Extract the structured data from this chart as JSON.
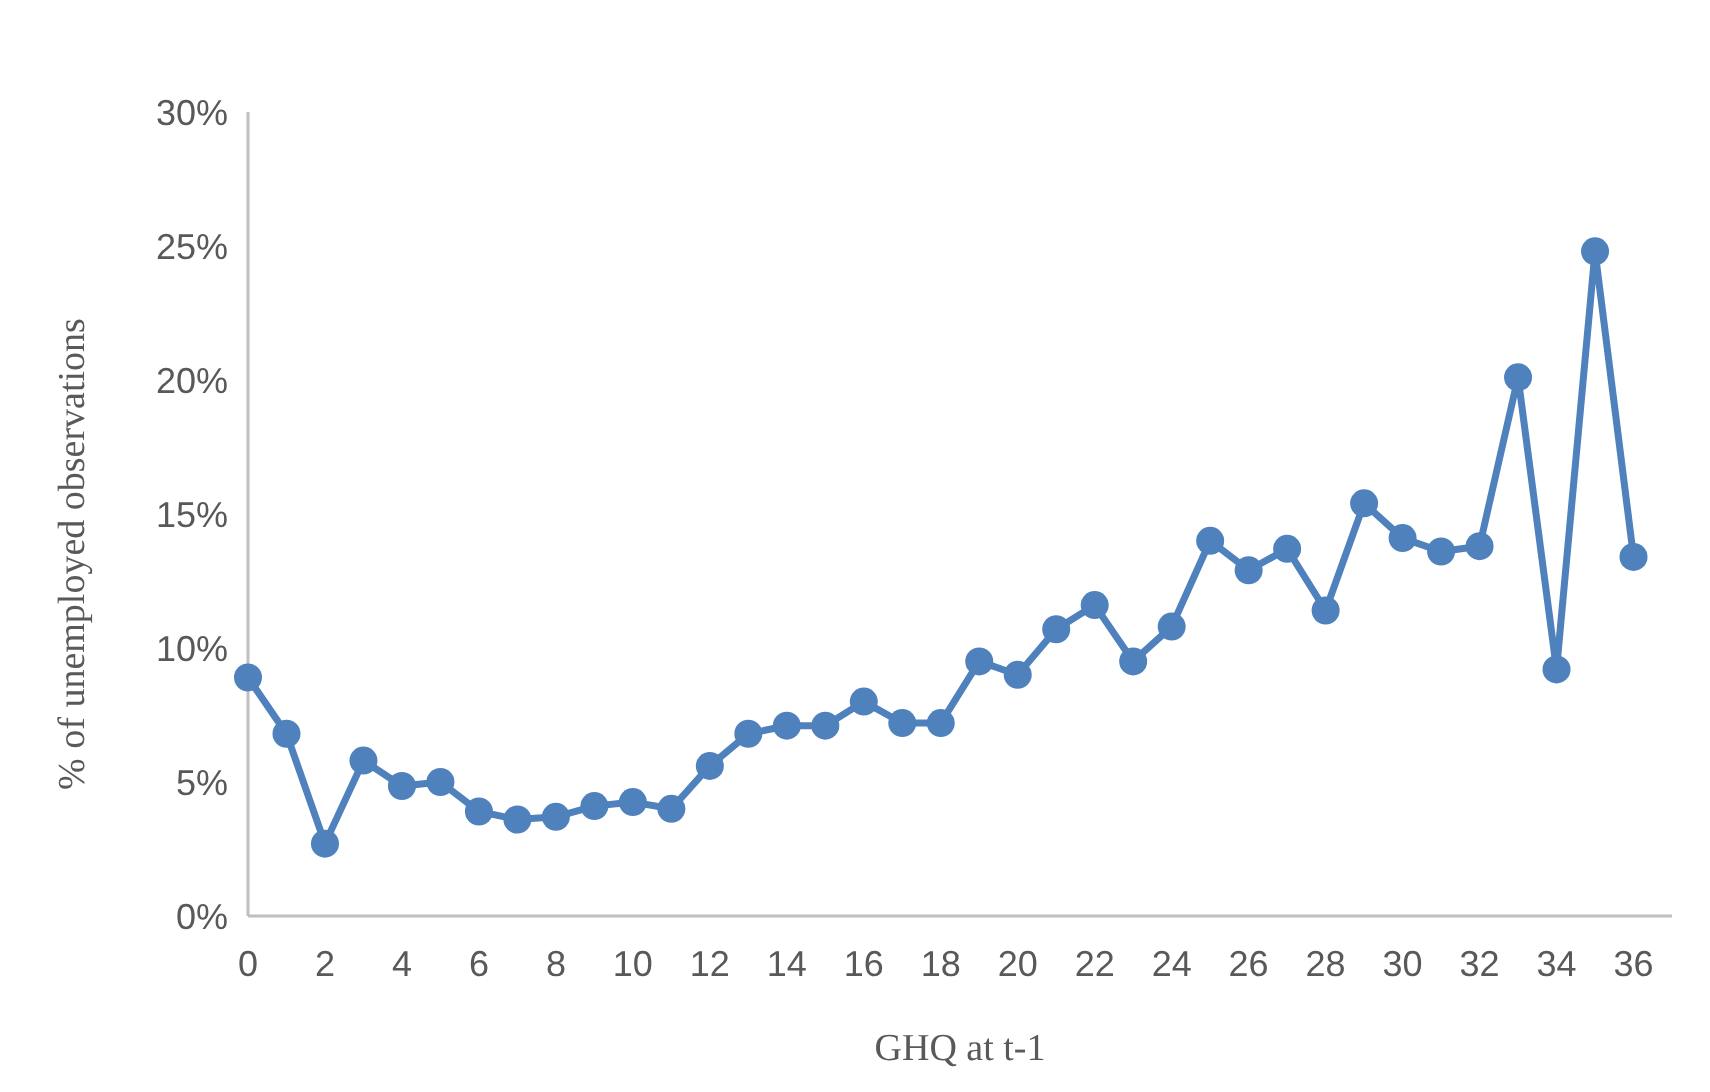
{
  "chart_data": {
    "type": "line",
    "xlabel": "GHQ at t-1",
    "ylabel": "% of unemployed observations",
    "x": [
      0,
      1,
      2,
      3,
      4,
      5,
      6,
      7,
      8,
      9,
      10,
      11,
      12,
      13,
      14,
      15,
      16,
      17,
      18,
      19,
      20,
      21,
      22,
      23,
      24,
      25,
      26,
      27,
      28,
      29,
      30,
      31,
      32,
      33,
      34,
      35,
      36
    ],
    "series": [
      {
        "color": "#4f81bd",
        "values": [
          8.9,
          6.8,
          2.7,
          5.8,
          4.85,
          5.0,
          3.9,
          3.6,
          3.7,
          4.1,
          4.25,
          4.0,
          5.6,
          6.8,
          7.1,
          7.1,
          8.0,
          7.2,
          7.2,
          9.5,
          9.0,
          10.7,
          11.6,
          9.5,
          10.8,
          14.0,
          12.9,
          13.7,
          11.4,
          15.4,
          14.1,
          13.6,
          13.8,
          20.1,
          9.2,
          24.8,
          13.4
        ]
      }
    ],
    "xlim": [
      0,
      37
    ],
    "xticks": [
      0,
      2,
      4,
      6,
      8,
      10,
      12,
      14,
      16,
      18,
      20,
      22,
      24,
      26,
      28,
      30,
      32,
      34,
      36
    ],
    "ylim": [
      0,
      30
    ],
    "yticks": [
      {
        "value": 0,
        "label": "0%"
      },
      {
        "value": 5,
        "label": "5%"
      },
      {
        "value": 10,
        "label": "10%"
      },
      {
        "value": 15,
        "label": "15%"
      },
      {
        "value": 20,
        "label": "20%"
      },
      {
        "value": 25,
        "label": "25%"
      },
      {
        "value": 30,
        "label": "30%"
      }
    ],
    "grid": false,
    "marker": "circle",
    "line_style": "solid"
  }
}
